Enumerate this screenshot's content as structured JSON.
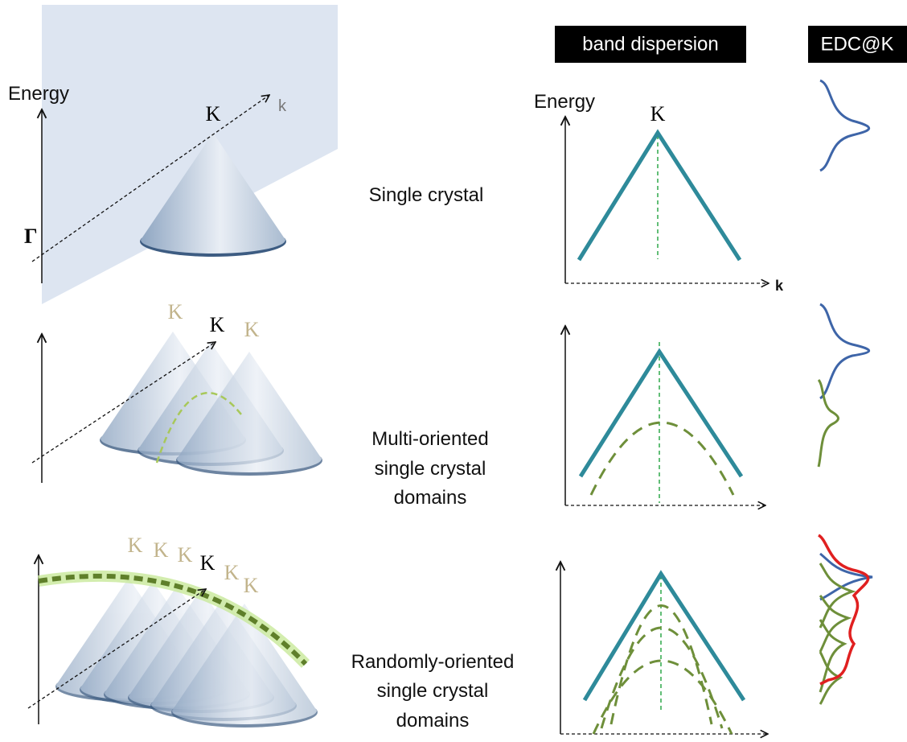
{
  "headers": {
    "band_dispersion": "band dispersion",
    "edc": "EDC@K"
  },
  "rows": [
    {
      "label_lines": [
        "Single crystal"
      ],
      "cone_labels": {
        "energy": "Energy",
        "k_axis": "k",
        "gamma": "Γ",
        "k_points": [
          "K"
        ]
      },
      "band": {
        "energy": "Energy",
        "k_point": "K",
        "k_axis": "k"
      }
    },
    {
      "label_lines": [
        "Multi-oriented",
        "single crystal",
        "domains"
      ],
      "cone_labels": {
        "k_points": [
          "K",
          "K",
          "K"
        ]
      }
    },
    {
      "label_lines": [
        "Randomly-oriented",
        "single crystal",
        "domains"
      ],
      "cone_labels": {
        "k_points": [
          "K",
          "K",
          "K",
          "K",
          "K",
          "K"
        ]
      }
    }
  ]
}
